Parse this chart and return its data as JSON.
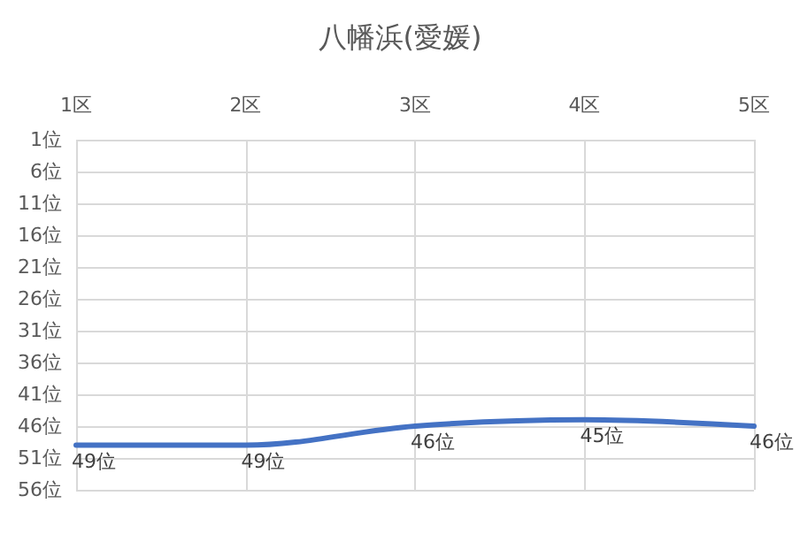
{
  "chart_data": {
    "type": "line",
    "title": "八幡浜(愛媛)",
    "categories": [
      "1区",
      "2区",
      "3区",
      "4区",
      "5区"
    ],
    "series": [
      {
        "color": "#4472c4",
        "values": [
          49,
          49,
          46,
          45,
          46
        ],
        "value_labels": [
          "49位",
          "49位",
          "46位",
          "45位",
          "46位"
        ]
      }
    ],
    "ylim": [
      56,
      1
    ],
    "yticks": [
      {
        "value": 1,
        "label": "1位"
      },
      {
        "value": 6,
        "label": "6位"
      },
      {
        "value": 11,
        "label": "11位"
      },
      {
        "value": 16,
        "label": "16位"
      },
      {
        "value": 21,
        "label": "21位"
      },
      {
        "value": 26,
        "label": "26位"
      },
      {
        "value": 31,
        "label": "31位"
      },
      {
        "value": 36,
        "label": "36位"
      },
      {
        "value": 41,
        "label": "41位"
      },
      {
        "value": 46,
        "label": "46位"
      },
      {
        "value": 51,
        "label": "51位"
      },
      {
        "value": 56,
        "label": "56位"
      }
    ],
    "grid": true,
    "marker": "none",
    "line_style": "solid"
  }
}
